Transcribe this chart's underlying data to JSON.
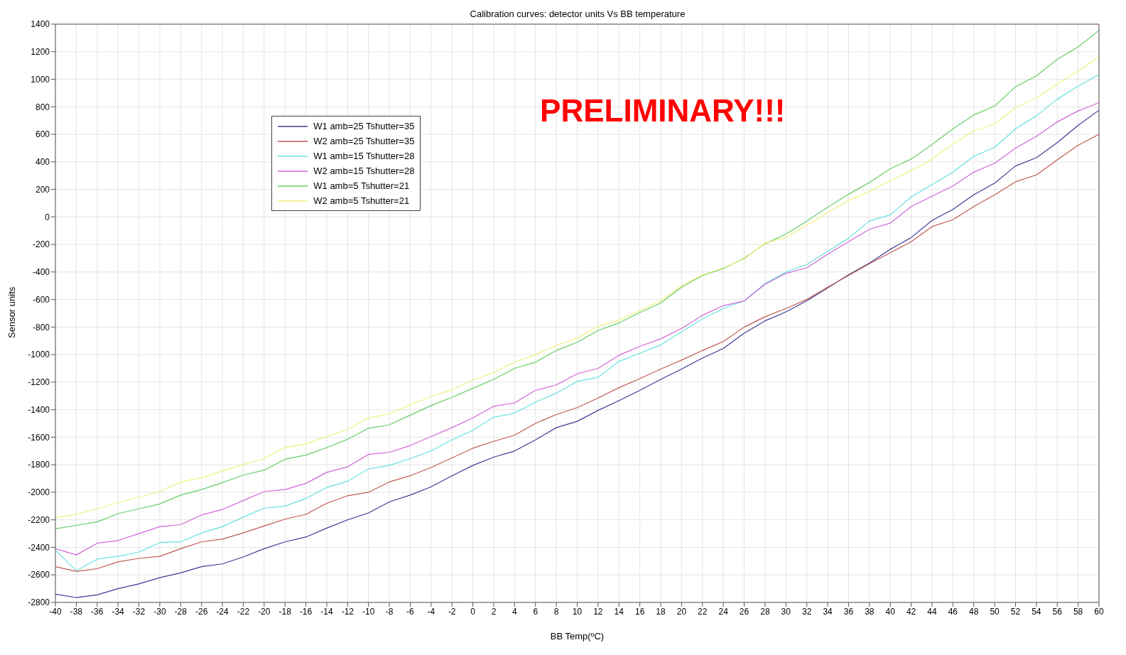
{
  "chart_data": {
    "type": "line",
    "title": "Calibration curves: detector units Vs BB temperature",
    "xlabel": "BB Temp(ºC)",
    "ylabel": "Sensor units",
    "annotations": [
      "PRELIMINARY!!!"
    ],
    "x": [
      -40,
      -38,
      -36,
      -34,
      -32,
      -30,
      -28,
      -26,
      -24,
      -22,
      -20,
      -18,
      -16,
      -14,
      -12,
      -10,
      -8,
      -6,
      -4,
      -2,
      0,
      2,
      4,
      6,
      8,
      10,
      12,
      14,
      16,
      18,
      20,
      22,
      24,
      26,
      28,
      30,
      32,
      34,
      36,
      38,
      40,
      42,
      44,
      46,
      48,
      50,
      52,
      54,
      56,
      58,
      60
    ],
    "series": [
      {
        "name": "W1 amb=25 Tshutter=35",
        "color": "#3c3c96",
        "values": [
          -2740,
          -2765,
          -2745,
          -2700,
          -2665,
          -2620,
          -2585,
          -2540,
          -2520,
          -2470,
          -2410,
          -2360,
          -2325,
          -2260,
          -2200,
          -2150,
          -2070,
          -2020,
          -1960,
          -1880,
          -1805,
          -1745,
          -1700,
          -1620,
          -1530,
          -1485,
          -1405,
          -1335,
          -1260,
          -1180,
          -1105,
          -1025,
          -955,
          -845,
          -755,
          -690,
          -610,
          -515,
          -420,
          -335,
          -235,
          -150,
          -25,
          55,
          160,
          245,
          370,
          430,
          540,
          665,
          775
        ]
      },
      {
        "name": "W2 amb=25 Tshutter=35",
        "color": "#c05a50",
        "values": [
          -2540,
          -2575,
          -2555,
          -2505,
          -2480,
          -2465,
          -2410,
          -2360,
          -2340,
          -2295,
          -2245,
          -2195,
          -2160,
          -2080,
          -2025,
          -2000,
          -1925,
          -1880,
          -1820,
          -1750,
          -1680,
          -1630,
          -1585,
          -1500,
          -1435,
          -1385,
          -1315,
          -1240,
          -1175,
          -1105,
          -1040,
          -970,
          -905,
          -800,
          -725,
          -665,
          -600,
          -510,
          -425,
          -340,
          -260,
          -180,
          -70,
          -20,
          75,
          160,
          255,
          305,
          415,
          520,
          600
        ]
      },
      {
        "name": "W1 amb=15 Tshutter=28",
        "color": "#66e0e0",
        "values": [
          -2420,
          -2570,
          -2485,
          -2465,
          -2435,
          -2365,
          -2360,
          -2295,
          -2250,
          -2180,
          -2115,
          -2100,
          -2045,
          -1965,
          -1920,
          -1830,
          -1805,
          -1755,
          -1700,
          -1620,
          -1550,
          -1455,
          -1425,
          -1345,
          -1280,
          -1195,
          -1165,
          -1050,
          -990,
          -930,
          -835,
          -740,
          -665,
          -610,
          -485,
          -400,
          -345,
          -250,
          -155,
          -30,
          15,
          145,
          235,
          325,
          440,
          505,
          640,
          735,
          855,
          950,
          1035
        ]
      },
      {
        "name": "W2 amb=15 Tshutter=28",
        "color": "#d066d6",
        "values": [
          -2410,
          -2455,
          -2370,
          -2350,
          -2300,
          -2250,
          -2235,
          -2165,
          -2125,
          -2060,
          -1995,
          -1980,
          -1935,
          -1855,
          -1815,
          -1725,
          -1710,
          -1660,
          -1595,
          -1530,
          -1460,
          -1375,
          -1350,
          -1260,
          -1220,
          -1140,
          -1100,
          -1005,
          -940,
          -885,
          -810,
          -715,
          -645,
          -610,
          -490,
          -410,
          -370,
          -270,
          -180,
          -90,
          -45,
          75,
          150,
          225,
          325,
          390,
          500,
          585,
          690,
          770,
          830
        ]
      },
      {
        "name": "W1 amb=5 Tshutter=21",
        "color": "#66cc66",
        "values": [
          -2265,
          -2240,
          -2215,
          -2155,
          -2120,
          -2085,
          -2020,
          -1980,
          -1930,
          -1875,
          -1840,
          -1760,
          -1730,
          -1675,
          -1615,
          -1535,
          -1510,
          -1440,
          -1370,
          -1310,
          -1245,
          -1180,
          -1100,
          -1055,
          -970,
          -910,
          -825,
          -770,
          -695,
          -625,
          -510,
          -425,
          -375,
          -300,
          -195,
          -125,
          -30,
          70,
          165,
          250,
          350,
          420,
          525,
          640,
          740,
          805,
          945,
          1025,
          1145,
          1235,
          1355
        ]
      },
      {
        "name": "W2 amb=5 Tshutter=21",
        "color": "#f0f080",
        "values": [
          -2185,
          -2160,
          -2120,
          -2075,
          -2035,
          -1995,
          -1925,
          -1895,
          -1845,
          -1800,
          -1755,
          -1675,
          -1650,
          -1595,
          -1545,
          -1460,
          -1430,
          -1365,
          -1305,
          -1255,
          -1185,
          -1130,
          -1055,
          -1000,
          -935,
          -880,
          -795,
          -750,
          -680,
          -610,
          -500,
          -420,
          -370,
          -305,
          -190,
          -150,
          -60,
          30,
          120,
          185,
          265,
          335,
          420,
          530,
          625,
          675,
          795,
          865,
          965,
          1060,
          1160
        ]
      }
    ],
    "xlim": [
      -40,
      60
    ],
    "xticks": [
      -40,
      -38,
      -36,
      -34,
      -32,
      -30,
      -28,
      -26,
      -24,
      -22,
      -20,
      -18,
      -16,
      -14,
      -12,
      -10,
      -8,
      -6,
      -4,
      -2,
      0,
      2,
      4,
      6,
      8,
      10,
      12,
      14,
      16,
      18,
      20,
      22,
      24,
      26,
      28,
      30,
      32,
      34,
      36,
      38,
      40,
      42,
      44,
      46,
      48,
      50,
      52,
      54,
      56,
      58,
      60
    ],
    "ylim": [
      -2800,
      1400
    ],
    "yticks": [
      -2800,
      -2600,
      -2400,
      -2200,
      -2000,
      -1800,
      -1600,
      -1400,
      -1200,
      -1000,
      -800,
      -600,
      -400,
      -200,
      0,
      200,
      400,
      600,
      800,
      1000,
      1200,
      1400
    ],
    "grid": true,
    "legend": "top left",
    "marker": "none",
    "line_style": "solid"
  }
}
